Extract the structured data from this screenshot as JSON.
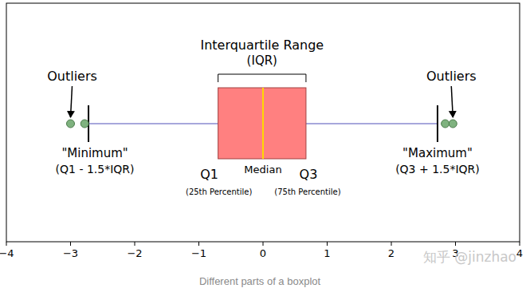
{
  "chart_data": {
    "type": "boxplot",
    "orientation": "horizontal",
    "color": "#ff8080",
    "xlim": [
      -4,
      4
    ],
    "xticks": [
      {
        "value": -4,
        "label": "−4"
      },
      {
        "value": -3,
        "label": "−3"
      },
      {
        "value": -2,
        "label": "−2"
      },
      {
        "value": -1,
        "label": "−1"
      },
      0,
      1,
      2,
      3,
      4
    ],
    "whisker_low": -2.72,
    "q1": -0.7,
    "median": 0,
    "q3": 0.67,
    "whisker_high": 2.72,
    "outliers": [
      -3.0,
      -2.78,
      2.84,
      2.96
    ],
    "annotations": {
      "outliers_left": "Outliers",
      "iqr": "Interquartile Range",
      "iqr_abbr": "(IQR)",
      "minimum": "\"Minimum\"",
      "minimum_formula": "(Q1 - 1.5*IQR)",
      "q1": "Q1",
      "q1_note": "(25th Percentile)",
      "median": "Median",
      "q3": "Q3",
      "q3_note": "(75th Percentile)",
      "maximum": "\"Maximum\"",
      "maximum_formula": "(Q3 + 1.5*IQR)",
      "outliers_right": "Outliers"
    },
    "caption": "Different parts of a boxplot",
    "watermark": "知乎 @jinzhao"
  }
}
